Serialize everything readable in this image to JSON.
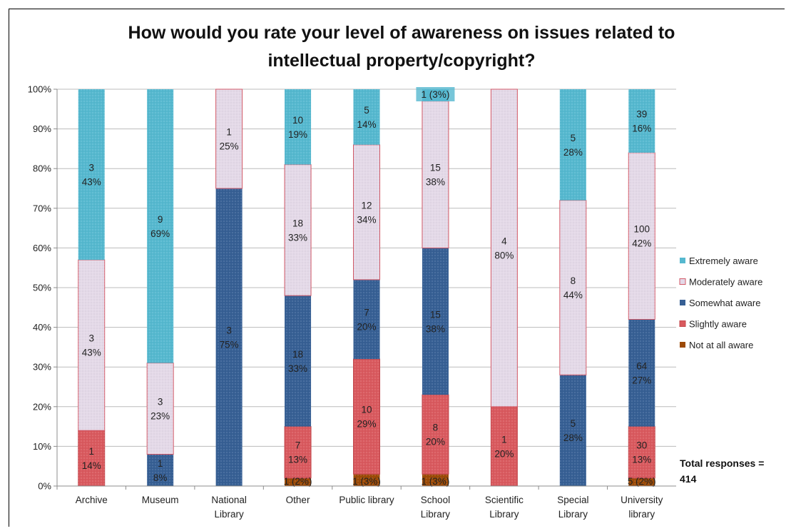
{
  "chart_data": {
    "type": "bar",
    "stacked": true,
    "title_line1": "How would you rate your level of awareness on issues related to",
    "title_line2": "intellectual property/copyright?",
    "yticks": [
      "0%",
      "10%",
      "20%",
      "30%",
      "40%",
      "50%",
      "60%",
      "70%",
      "80%",
      "90%",
      "100%"
    ],
    "ylim": [
      0,
      100
    ],
    "grid": true,
    "legend_position": "right",
    "categories": [
      [
        "Archive"
      ],
      [
        "Museum"
      ],
      [
        "National",
        "Library"
      ],
      [
        "Other"
      ],
      [
        "Public library"
      ],
      [
        "School",
        "Library"
      ],
      [
        "Scientific",
        "Library"
      ],
      [
        "Special",
        "Library"
      ],
      [
        "University",
        "library"
      ]
    ],
    "series": [
      {
        "name": "Not at all aware",
        "color": "#9c4a06",
        "values": [
          0,
          0,
          0,
          2,
          3,
          3,
          0,
          0,
          2
        ],
        "labels": [
          [],
          [],
          [],
          [
            "1 (2%)"
          ],
          [
            "1 (3%)"
          ],
          [
            "1 (3%)"
          ],
          [],
          [],
          [
            "5 (2%)"
          ]
        ]
      },
      {
        "name": "Slightly aware",
        "color": "#d9595e",
        "values": [
          14,
          0,
          0,
          13,
          29,
          20,
          20,
          0,
          13
        ],
        "labels": [
          [
            "1",
            "14%"
          ],
          [],
          [],
          [
            "7",
            "13%"
          ],
          [
            "10",
            "29%"
          ],
          [
            "8",
            "20%"
          ],
          [
            "1",
            "20%"
          ],
          [],
          [
            "30",
            "13%"
          ]
        ]
      },
      {
        "name": "Somewhat aware",
        "color": "#365f94",
        "values": [
          0,
          8,
          75,
          33,
          20,
          37,
          0,
          28,
          27
        ],
        "labels": [
          [],
          [
            "1",
            "8%"
          ],
          [
            "3",
            "75%"
          ],
          [
            "18",
            "33%"
          ],
          [
            "7",
            "20%"
          ],
          [
            "15",
            "38%"
          ],
          [],
          [
            "5",
            "28%"
          ],
          [
            "64",
            "27%"
          ]
        ]
      },
      {
        "name": "Moderately aware",
        "color": "#e4d9e8",
        "values": [
          43,
          23,
          25,
          33,
          34,
          37,
          80,
          44,
          42
        ],
        "labels": [
          [
            "3",
            "43%"
          ],
          [
            "3",
            "23%"
          ],
          [
            "1",
            "25%"
          ],
          [
            "18",
            "33%"
          ],
          [
            "12",
            "34%"
          ],
          [
            "15",
            "38%"
          ],
          [
            "4",
            "80%"
          ],
          [
            "8",
            "44%"
          ],
          [
            "100",
            "42%"
          ]
        ]
      },
      {
        "name": "Extremely aware",
        "color": "#55b8cf",
        "values": [
          43,
          69,
          0,
          19,
          14,
          3,
          0,
          28,
          16
        ],
        "labels": [
          [
            "3",
            "43%"
          ],
          [
            "9",
            "69%"
          ],
          [],
          [
            "10",
            "19%"
          ],
          [
            "5",
            "14%"
          ],
          [
            "1 (3%)"
          ],
          [],
          [
            "5",
            "28%"
          ],
          [
            "39",
            "16%"
          ]
        ]
      }
    ],
    "legend_order": [
      "Extremely aware",
      "Moderately aware",
      "Somewhat aware",
      "Slightly aware",
      "Not at all aware"
    ],
    "annotation_line1": "Total responses =",
    "annotation_line2": "414"
  }
}
